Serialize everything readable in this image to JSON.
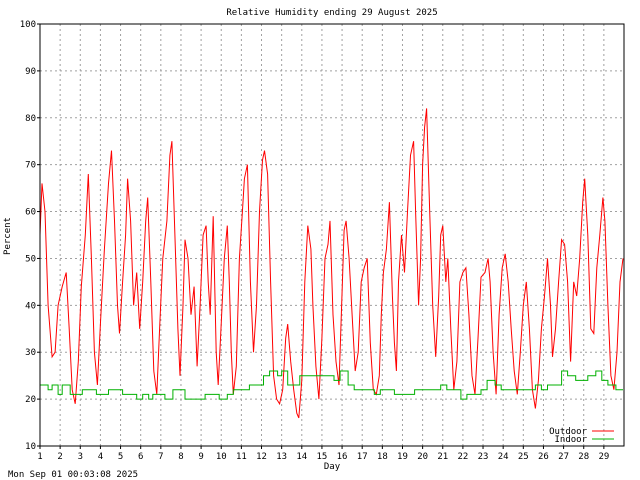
{
  "chart_data": {
    "type": "line",
    "title": "Relative Humidity ending 29 August 2025",
    "xlabel": "Day",
    "ylabel": "Percent",
    "xlim": [
      1,
      30
    ],
    "ylim": [
      10,
      100
    ],
    "x_ticks": [
      "1",
      "2",
      "3",
      "4",
      "5",
      "6",
      "7",
      "8",
      "9",
      "10",
      "11",
      "12",
      "13",
      "14",
      "15",
      "16",
      "17",
      "18",
      "19",
      "20",
      "21",
      "22",
      "23",
      "24",
      "25",
      "26",
      "27",
      "28",
      "29"
    ],
    "y_ticks": [
      "10",
      "20",
      "30",
      "40",
      "50",
      "60",
      "70",
      "80",
      "90",
      "100"
    ],
    "grid": true,
    "legend_position": "bottom-right",
    "colors": {
      "outdoor": "#ff0000",
      "indoor": "#00b000",
      "grid": "#a0a0a0",
      "axis": "#000000"
    },
    "series": [
      {
        "name": "Outdoor",
        "points": [
          [
            1.0,
            55
          ],
          [
            1.1,
            66
          ],
          [
            1.25,
            60
          ],
          [
            1.4,
            40
          ],
          [
            1.6,
            29
          ],
          [
            1.75,
            30
          ],
          [
            1.9,
            40
          ],
          [
            2.1,
            44
          ],
          [
            2.3,
            47
          ],
          [
            2.45,
            35
          ],
          [
            2.6,
            22
          ],
          [
            2.75,
            19
          ],
          [
            2.9,
            28
          ],
          [
            3.05,
            44
          ],
          [
            3.25,
            55
          ],
          [
            3.4,
            68
          ],
          [
            3.55,
            50
          ],
          [
            3.7,
            30
          ],
          [
            3.85,
            23
          ],
          [
            4.0,
            36
          ],
          [
            4.2,
            52
          ],
          [
            4.4,
            66
          ],
          [
            4.55,
            73
          ],
          [
            4.7,
            58
          ],
          [
            4.85,
            40
          ],
          [
            4.95,
            34
          ],
          [
            5.1,
            45
          ],
          [
            5.25,
            55
          ],
          [
            5.35,
            67
          ],
          [
            5.5,
            58
          ],
          [
            5.65,
            40
          ],
          [
            5.8,
            47
          ],
          [
            5.95,
            35
          ],
          [
            6.1,
            45
          ],
          [
            6.25,
            58
          ],
          [
            6.35,
            63
          ],
          [
            6.5,
            45
          ],
          [
            6.65,
            26
          ],
          [
            6.8,
            21
          ],
          [
            6.95,
            36
          ],
          [
            7.1,
            50
          ],
          [
            7.3,
            58
          ],
          [
            7.45,
            72
          ],
          [
            7.55,
            75
          ],
          [
            7.7,
            55
          ],
          [
            7.85,
            35
          ],
          [
            7.95,
            25
          ],
          [
            8.1,
            40
          ],
          [
            8.2,
            54
          ],
          [
            8.35,
            50
          ],
          [
            8.5,
            38
          ],
          [
            8.65,
            44
          ],
          [
            8.8,
            27
          ],
          [
            8.95,
            40
          ],
          [
            9.1,
            55
          ],
          [
            9.25,
            57
          ],
          [
            9.35,
            45
          ],
          [
            9.45,
            38
          ],
          [
            9.6,
            59
          ],
          [
            9.75,
            30
          ],
          [
            9.85,
            23
          ],
          [
            10.0,
            36
          ],
          [
            10.15,
            50
          ],
          [
            10.3,
            57
          ],
          [
            10.4,
            45
          ],
          [
            10.5,
            30
          ],
          [
            10.6,
            21
          ],
          [
            10.75,
            27
          ],
          [
            10.9,
            50
          ],
          [
            11.05,
            60
          ],
          [
            11.15,
            67
          ],
          [
            11.3,
            70
          ],
          [
            11.45,
            45
          ],
          [
            11.6,
            30
          ],
          [
            11.75,
            40
          ],
          [
            11.9,
            60
          ],
          [
            12.05,
            71
          ],
          [
            12.15,
            73
          ],
          [
            12.3,
            68
          ],
          [
            12.45,
            45
          ],
          [
            12.6,
            25
          ],
          [
            12.75,
            20
          ],
          [
            12.9,
            19
          ],
          [
            13.05,
            22
          ],
          [
            13.2,
            33
          ],
          [
            13.3,
            36
          ],
          [
            13.45,
            28
          ],
          [
            13.6,
            22
          ],
          [
            13.75,
            17
          ],
          [
            13.85,
            16
          ],
          [
            14.0,
            24
          ],
          [
            14.15,
            45
          ],
          [
            14.3,
            57
          ],
          [
            14.45,
            52
          ],
          [
            14.55,
            40
          ],
          [
            14.7,
            27
          ],
          [
            14.85,
            20
          ],
          [
            15.0,
            33
          ],
          [
            15.15,
            50
          ],
          [
            15.3,
            53
          ],
          [
            15.4,
            58
          ],
          [
            15.55,
            38
          ],
          [
            15.7,
            28
          ],
          [
            15.85,
            23
          ],
          [
            16.0,
            43
          ],
          [
            16.1,
            56
          ],
          [
            16.2,
            58
          ],
          [
            16.35,
            50
          ],
          [
            16.5,
            38
          ],
          [
            16.65,
            26
          ],
          [
            16.8,
            30
          ],
          [
            16.95,
            45
          ],
          [
            17.1,
            48
          ],
          [
            17.25,
            50
          ],
          [
            17.4,
            32
          ],
          [
            17.55,
            22
          ],
          [
            17.7,
            21
          ],
          [
            17.85,
            25
          ],
          [
            17.95,
            38
          ],
          [
            18.05,
            47
          ],
          [
            18.2,
            52
          ],
          [
            18.35,
            62
          ],
          [
            18.5,
            42
          ],
          [
            18.6,
            32
          ],
          [
            18.7,
            26
          ],
          [
            18.8,
            45
          ],
          [
            18.95,
            55
          ],
          [
            19.1,
            47
          ],
          [
            19.25,
            60
          ],
          [
            19.4,
            72
          ],
          [
            19.55,
            75
          ],
          [
            19.65,
            60
          ],
          [
            19.8,
            40
          ],
          [
            19.9,
            50
          ],
          [
            20.0,
            70
          ],
          [
            20.1,
            78
          ],
          [
            20.2,
            82
          ],
          [
            20.35,
            60
          ],
          [
            20.5,
            40
          ],
          [
            20.65,
            29
          ],
          [
            20.8,
            42
          ],
          [
            20.9,
            55
          ],
          [
            21.0,
            57
          ],
          [
            21.15,
            45
          ],
          [
            21.25,
            50
          ],
          [
            21.4,
            35
          ],
          [
            21.55,
            22
          ],
          [
            21.7,
            28
          ],
          [
            21.85,
            45
          ],
          [
            22.0,
            47
          ],
          [
            22.15,
            48
          ],
          [
            22.3,
            38
          ],
          [
            22.45,
            25
          ],
          [
            22.6,
            21
          ],
          [
            22.75,
            33
          ],
          [
            22.9,
            46
          ],
          [
            23.1,
            47
          ],
          [
            23.25,
            50
          ],
          [
            23.35,
            45
          ],
          [
            23.5,
            30
          ],
          [
            23.65,
            21
          ],
          [
            23.8,
            38
          ],
          [
            23.95,
            48
          ],
          [
            24.1,
            51
          ],
          [
            24.25,
            45
          ],
          [
            24.4,
            35
          ],
          [
            24.55,
            26
          ],
          [
            24.7,
            21
          ],
          [
            24.85,
            30
          ],
          [
            25.0,
            40
          ],
          [
            25.15,
            45
          ],
          [
            25.3,
            35
          ],
          [
            25.45,
            22
          ],
          [
            25.6,
            18
          ],
          [
            25.75,
            24
          ],
          [
            25.9,
            35
          ],
          [
            26.05,
            42
          ],
          [
            26.2,
            50
          ],
          [
            26.35,
            40
          ],
          [
            26.45,
            29
          ],
          [
            26.6,
            35
          ],
          [
            26.75,
            45
          ],
          [
            26.9,
            54
          ],
          [
            27.05,
            53
          ],
          [
            27.2,
            45
          ],
          [
            27.35,
            28
          ],
          [
            27.5,
            45
          ],
          [
            27.65,
            42
          ],
          [
            27.8,
            50
          ],
          [
            27.95,
            62
          ],
          [
            28.05,
            67
          ],
          [
            28.2,
            55
          ],
          [
            28.35,
            35
          ],
          [
            28.5,
            34
          ],
          [
            28.65,
            48
          ],
          [
            28.8,
            55
          ],
          [
            28.95,
            63
          ],
          [
            29.05,
            58
          ],
          [
            29.2,
            40
          ],
          [
            29.35,
            25
          ],
          [
            29.5,
            22
          ],
          [
            29.65,
            30
          ],
          [
            29.8,
            45
          ],
          [
            29.95,
            50
          ]
        ]
      },
      {
        "name": "Indoor",
        "step": true,
        "points": [
          [
            1.0,
            23
          ],
          [
            1.4,
            22
          ],
          [
            1.6,
            23
          ],
          [
            1.9,
            21
          ],
          [
            2.1,
            23
          ],
          [
            2.5,
            21
          ],
          [
            2.9,
            21
          ],
          [
            3.1,
            22
          ],
          [
            3.5,
            22
          ],
          [
            3.8,
            21
          ],
          [
            4.1,
            21
          ],
          [
            4.4,
            22
          ],
          [
            4.8,
            22
          ],
          [
            5.1,
            21
          ],
          [
            5.4,
            21
          ],
          [
            5.8,
            20
          ],
          [
            6.1,
            21
          ],
          [
            6.4,
            20
          ],
          [
            6.6,
            21
          ],
          [
            6.9,
            21
          ],
          [
            7.2,
            20
          ],
          [
            7.6,
            22
          ],
          [
            7.9,
            22
          ],
          [
            8.2,
            20
          ],
          [
            8.6,
            20
          ],
          [
            8.9,
            20
          ],
          [
            9.2,
            21
          ],
          [
            9.6,
            21
          ],
          [
            9.9,
            20
          ],
          [
            10.3,
            21
          ],
          [
            10.6,
            22
          ],
          [
            10.9,
            22
          ],
          [
            11.1,
            22
          ],
          [
            11.4,
            23
          ],
          [
            11.9,
            23
          ],
          [
            12.1,
            25
          ],
          [
            12.4,
            26
          ],
          [
            12.8,
            25
          ],
          [
            13.0,
            26
          ],
          [
            13.3,
            23
          ],
          [
            13.6,
            23
          ],
          [
            13.9,
            25
          ],
          [
            14.2,
            25
          ],
          [
            14.6,
            25
          ],
          [
            14.9,
            25
          ],
          [
            15.3,
            25
          ],
          [
            15.6,
            24
          ],
          [
            15.9,
            26
          ],
          [
            16.3,
            23
          ],
          [
            16.6,
            22
          ],
          [
            16.9,
            22
          ],
          [
            17.2,
            22
          ],
          [
            17.6,
            21
          ],
          [
            17.9,
            22
          ],
          [
            18.2,
            22
          ],
          [
            18.6,
            21
          ],
          [
            18.9,
            21
          ],
          [
            19.2,
            21
          ],
          [
            19.6,
            22
          ],
          [
            19.9,
            22
          ],
          [
            20.2,
            22
          ],
          [
            20.6,
            22
          ],
          [
            20.9,
            23
          ],
          [
            21.2,
            22
          ],
          [
            21.6,
            22
          ],
          [
            21.9,
            20
          ],
          [
            22.2,
            21
          ],
          [
            22.6,
            21
          ],
          [
            22.9,
            22
          ],
          [
            23.2,
            24
          ],
          [
            23.6,
            23
          ],
          [
            23.9,
            22
          ],
          [
            24.2,
            22
          ],
          [
            24.6,
            22
          ],
          [
            24.9,
            22
          ],
          [
            25.2,
            22
          ],
          [
            25.6,
            23
          ],
          [
            25.9,
            22
          ],
          [
            26.2,
            23
          ],
          [
            26.6,
            23
          ],
          [
            26.9,
            26
          ],
          [
            27.2,
            25
          ],
          [
            27.6,
            24
          ],
          [
            27.9,
            24
          ],
          [
            28.2,
            25
          ],
          [
            28.6,
            26
          ],
          [
            28.9,
            24
          ],
          [
            29.2,
            23
          ],
          [
            29.6,
            22
          ],
          [
            29.95,
            22
          ]
        ]
      }
    ]
  },
  "footer": {
    "timestamp": "Mon Sep 01 00:03:08 2025"
  }
}
